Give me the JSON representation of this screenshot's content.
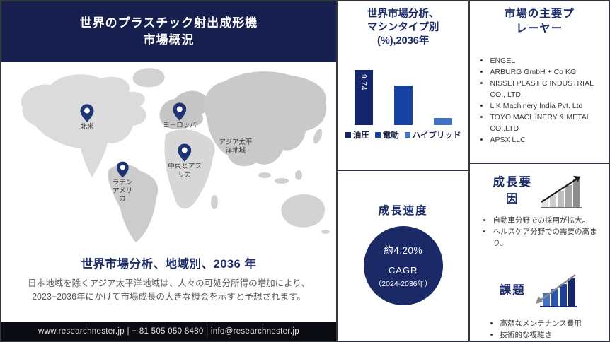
{
  "theme": {
    "navy": "#161f4e",
    "accent_blue": "#1843a5",
    "light_blue": "#4472c4"
  },
  "header": {
    "title": "世界のプラスチック射出成形機\n市場概況"
  },
  "map": {
    "regions": [
      {
        "label": "北米"
      },
      {
        "label": "ヨーロッパ"
      },
      {
        "label": "アジア太平\n洋地域"
      },
      {
        "label": "中東とアフ\nリカ"
      },
      {
        "label": "ラテン\nアメリ\nカ"
      }
    ]
  },
  "regional": {
    "heading": "世界市場分析、地域別、2036 年",
    "body": "日本地域を除くアジア太平洋地域は、人々の可処分所得の増加により、\n2023−2036年にかけて市場成長の大きな機会を示すと予想されます。"
  },
  "footer": {
    "text": "www.researchnester.jp | + 81 505 050 8480 | info@researchnester.jp"
  },
  "chart_data": {
    "type": "bar",
    "title": "世界市場分析、\nマシンタイプ別\n(%),2036年",
    "categories": [
      "油圧",
      "電動",
      "ハイブリッド"
    ],
    "values": [
      9.74,
      7.0,
      1.25
    ],
    "value_labels": [
      "9.74",
      "",
      ""
    ],
    "colors": [
      "#15256b",
      "#1843a5",
      "#4472c4"
    ],
    "ylabel": "%",
    "legend_position": "bottom",
    "axes_hidden": true
  },
  "growth_rate": {
    "heading": "成長速度",
    "value": "約4.20%",
    "metric": "CAGR",
    "period": "（2024-2036年）"
  },
  "players": {
    "heading": "市場の主要プ\nレーヤー",
    "items": [
      "ENGEL",
      "ARBURG GmbH + Co KG",
      "NISSEI PLASTIC INDUSTRIAL CO., LTD.",
      "L K Machinery India Pvt. Ltd",
      "TOYO MACHINERY & METAL CO.,LTD",
      "APSX LLC"
    ]
  },
  "growth_factors": {
    "heading": "成長要\n因",
    "items": [
      "自動車分野での採用が拡大。",
      "ヘルスケア分野での需要の高まり。"
    ]
  },
  "challenges": {
    "heading": "課題",
    "items": [
      "高額なメンテナンス費用",
      "技術的な複雑さ"
    ]
  }
}
